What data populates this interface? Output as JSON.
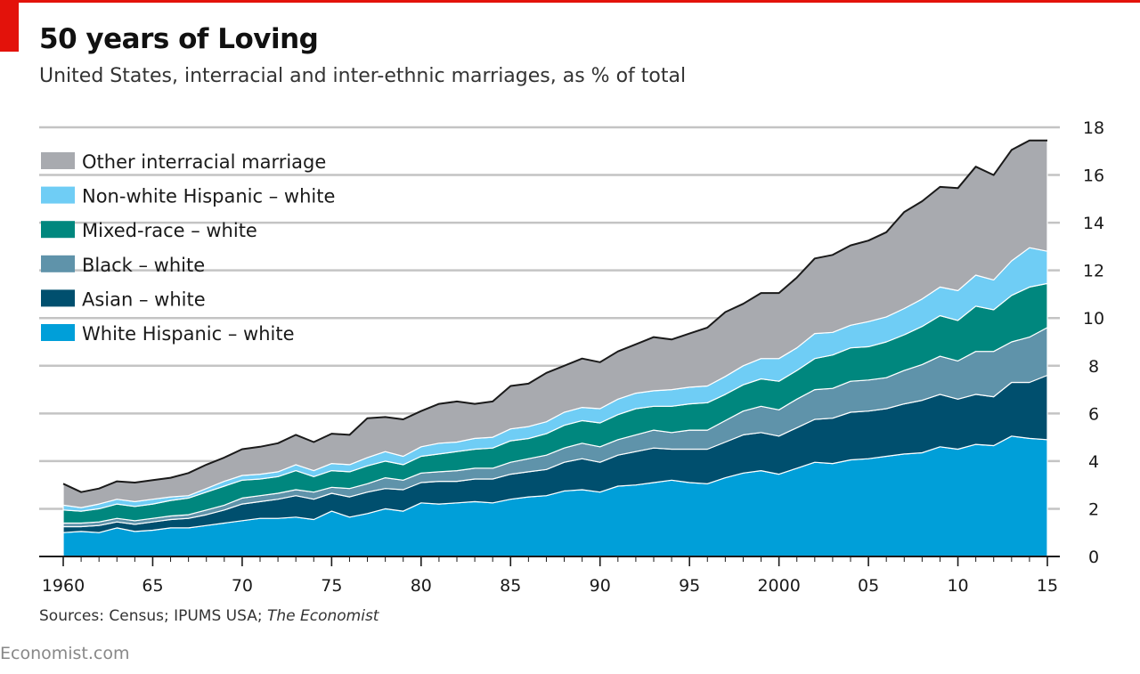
{
  "header": {
    "title": "50 years of Loving",
    "subtitle": "United States, interracial and inter-ethnic marriages, as % of total"
  },
  "footer": {
    "source_prefix": "Sources: Census; IPUMS USA; ",
    "source_italic": "The Economist",
    "brand": "Economist.com"
  },
  "colors": {
    "accent": "#e3120b",
    "other": "#a8aaaf",
    "non_white_hispanic": "#6fcdf5",
    "mixed_race": "#00877e",
    "black": "#5f93aa",
    "asian": "#004f6e",
    "white_hispanic": "#009fd9",
    "gridline": "#c4c4c4",
    "outline": "#1a1a1a"
  },
  "chart_data": {
    "type": "area",
    "stacked": true,
    "title": "50 years of Loving",
    "subtitle": "United States, interracial and inter-ethnic marriages, as % of total",
    "x": [
      1960,
      1961,
      1962,
      1963,
      1964,
      1965,
      1966,
      1967,
      1968,
      1969,
      1970,
      1971,
      1972,
      1973,
      1974,
      1975,
      1976,
      1977,
      1978,
      1979,
      1980,
      1981,
      1982,
      1983,
      1984,
      1985,
      1986,
      1987,
      1988,
      1989,
      1990,
      1991,
      1992,
      1993,
      1994,
      1995,
      1996,
      1997,
      1998,
      1999,
      2000,
      2001,
      2002,
      2003,
      2004,
      2005,
      2006,
      2007,
      2008,
      2009,
      2010,
      2011,
      2012,
      2013,
      2014,
      2015
    ],
    "x_ticks": [
      1960,
      1965,
      1970,
      1975,
      1980,
      1985,
      1990,
      1995,
      2000,
      2005,
      2010,
      2015
    ],
    "x_tick_labels": [
      "1960",
      "65",
      "70",
      "75",
      "80",
      "85",
      "90",
      "95",
      "2000",
      "05",
      "10",
      "15"
    ],
    "ylim": [
      0,
      18
    ],
    "y_ticks": [
      0,
      2,
      4,
      6,
      8,
      10,
      12,
      14,
      16,
      18
    ],
    "y_axis_position": "right",
    "grid": true,
    "legend_position": "top-left",
    "series": [
      {
        "name": "White Hispanic – white",
        "color_key": "white_hispanic",
        "values": [
          1.0,
          1.05,
          1.0,
          1.2,
          1.05,
          1.1,
          1.2,
          1.2,
          1.3,
          1.4,
          1.5,
          1.6,
          1.6,
          1.65,
          1.55,
          1.9,
          1.65,
          1.8,
          2.0,
          1.9,
          2.25,
          2.2,
          2.25,
          2.3,
          2.25,
          2.4,
          2.5,
          2.55,
          2.75,
          2.8,
          2.7,
          2.95,
          3.0,
          3.1,
          3.2,
          3.1,
          3.05,
          3.3,
          3.5,
          3.6,
          3.45,
          3.7,
          3.95,
          3.9,
          4.05,
          4.1,
          4.2,
          4.3,
          4.35,
          4.6,
          4.5,
          4.7,
          4.65,
          5.05,
          4.95,
          4.9
        ]
      },
      {
        "name": "Asian – white",
        "color_key": "asian",
        "values": [
          0.25,
          0.2,
          0.3,
          0.25,
          0.3,
          0.35,
          0.35,
          0.4,
          0.45,
          0.55,
          0.7,
          0.7,
          0.8,
          0.9,
          0.85,
          0.75,
          0.85,
          0.9,
          0.85,
          0.9,
          0.85,
          0.95,
          0.9,
          0.95,
          1.0,
          1.05,
          1.05,
          1.1,
          1.2,
          1.3,
          1.25,
          1.3,
          1.4,
          1.45,
          1.3,
          1.4,
          1.45,
          1.5,
          1.6,
          1.6,
          1.6,
          1.7,
          1.8,
          1.9,
          2.0,
          2.0,
          2.0,
          2.1,
          2.2,
          2.2,
          2.1,
          2.1,
          2.05,
          2.25,
          2.35,
          2.7
        ]
      },
      {
        "name": "Black – white",
        "color_key": "black",
        "values": [
          0.15,
          0.15,
          0.15,
          0.15,
          0.15,
          0.15,
          0.15,
          0.15,
          0.2,
          0.2,
          0.25,
          0.25,
          0.25,
          0.25,
          0.3,
          0.25,
          0.35,
          0.35,
          0.45,
          0.4,
          0.4,
          0.4,
          0.45,
          0.45,
          0.45,
          0.5,
          0.55,
          0.6,
          0.6,
          0.65,
          0.65,
          0.65,
          0.7,
          0.75,
          0.7,
          0.8,
          0.8,
          0.9,
          1.0,
          1.1,
          1.1,
          1.2,
          1.25,
          1.25,
          1.3,
          1.3,
          1.3,
          1.4,
          1.5,
          1.6,
          1.6,
          1.8,
          1.9,
          1.7,
          1.9,
          2.0
        ]
      },
      {
        "name": "Mixed-race – white",
        "color_key": "mixed_race",
        "values": [
          0.55,
          0.5,
          0.55,
          0.6,
          0.6,
          0.6,
          0.65,
          0.7,
          0.75,
          0.8,
          0.75,
          0.7,
          0.7,
          0.8,
          0.65,
          0.7,
          0.7,
          0.75,
          0.7,
          0.65,
          0.7,
          0.75,
          0.8,
          0.8,
          0.85,
          0.9,
          0.85,
          0.9,
          0.95,
          0.95,
          1.0,
          1.05,
          1.1,
          1.0,
          1.1,
          1.1,
          1.15,
          1.1,
          1.1,
          1.15,
          1.2,
          1.2,
          1.3,
          1.4,
          1.4,
          1.4,
          1.5,
          1.5,
          1.6,
          1.7,
          1.7,
          1.9,
          1.75,
          1.95,
          2.1,
          1.85
        ]
      },
      {
        "name": "Non-white Hispanic – white",
        "color_key": "non_white_hispanic",
        "values": [
          0.2,
          0.15,
          0.2,
          0.2,
          0.2,
          0.2,
          0.15,
          0.1,
          0.15,
          0.2,
          0.2,
          0.2,
          0.2,
          0.25,
          0.25,
          0.3,
          0.3,
          0.35,
          0.4,
          0.35,
          0.4,
          0.45,
          0.4,
          0.45,
          0.45,
          0.5,
          0.5,
          0.5,
          0.55,
          0.55,
          0.6,
          0.65,
          0.65,
          0.65,
          0.7,
          0.7,
          0.7,
          0.75,
          0.8,
          0.85,
          0.95,
          0.95,
          1.05,
          0.95,
          0.95,
          1.05,
          1.05,
          1.1,
          1.15,
          1.2,
          1.25,
          1.3,
          1.25,
          1.45,
          1.65,
          1.35
        ]
      },
      {
        "name": "Other interracial marriage",
        "color_key": "other",
        "values": [
          0.9,
          0.65,
          0.65,
          0.75,
          0.8,
          0.8,
          0.8,
          0.95,
          1.0,
          1.0,
          1.1,
          1.15,
          1.2,
          1.25,
          1.2,
          1.25,
          1.25,
          1.65,
          1.45,
          1.55,
          1.5,
          1.65,
          1.7,
          1.45,
          1.5,
          1.8,
          1.8,
          2.05,
          1.95,
          2.05,
          1.95,
          2.0,
          2.05,
          2.25,
          2.1,
          2.25,
          2.45,
          2.7,
          2.6,
          2.75,
          2.75,
          2.95,
          3.15,
          3.25,
          3.35,
          3.4,
          3.55,
          4.05,
          4.1,
          4.2,
          4.3,
          4.55,
          4.4,
          4.65,
          4.5,
          4.65
        ]
      }
    ],
    "legend_order": [
      "Other interracial marriage",
      "Non-white Hispanic – white",
      "Mixed-race – white",
      "Black – white",
      "Asian – white",
      "White Hispanic – white"
    ]
  }
}
